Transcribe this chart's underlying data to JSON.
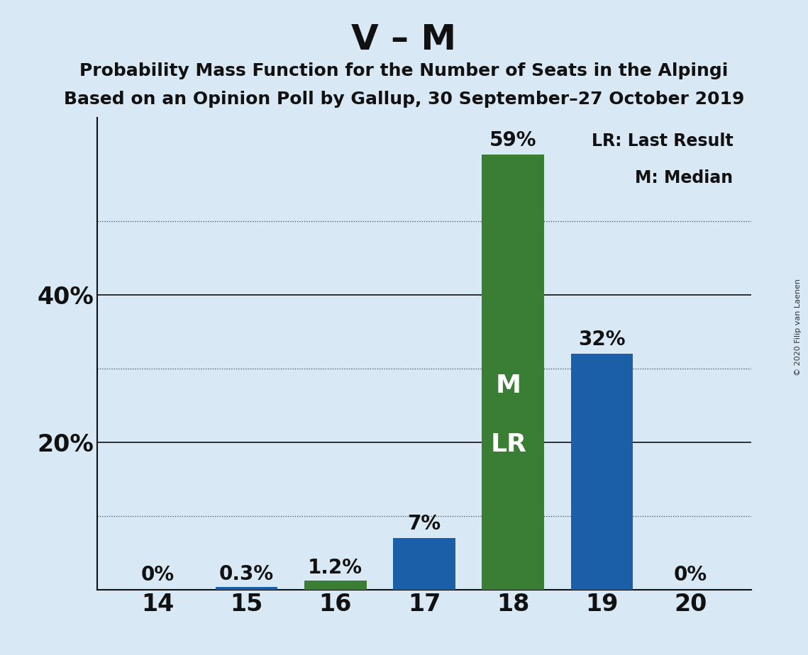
{
  "title": "V – M",
  "subtitle1": "Probability Mass Function for the Number of Seats in the Alpingi",
  "subtitle2": "Based on an Opinion Poll by Gallup, 30 September–27 October 2019",
  "copyright": "© 2020 Filip van Laenen",
  "categories": [
    14,
    15,
    16,
    17,
    18,
    19,
    20
  ],
  "values": [
    0.0,
    0.3,
    1.2,
    7.0,
    59.0,
    32.0,
    0.0
  ],
  "bar_colors": [
    "#3a7d35",
    "#1a5fa8",
    "#3a7d35",
    "#1a5fa8",
    "#3a7d35",
    "#1a5fa8",
    "#3a7d35"
  ],
  "bar_labels": [
    "0%",
    "0.3%",
    "1.2%",
    "7%",
    "59%",
    "32%",
    "0%"
  ],
  "legend_text1": "LR: Last Result",
  "legend_text2": "M: Median",
  "background_color": "#d8e8f5",
  "ylim": [
    0,
    64
  ],
  "solid_yticks": [
    20,
    40
  ],
  "dotted_yticks": [
    10,
    30,
    50
  ],
  "label_yticks": [
    20,
    40
  ],
  "title_fontsize": 36,
  "subtitle_fontsize": 18,
  "label_fontsize": 20,
  "tick_fontsize": 24,
  "inside_label_fontsize": 26
}
